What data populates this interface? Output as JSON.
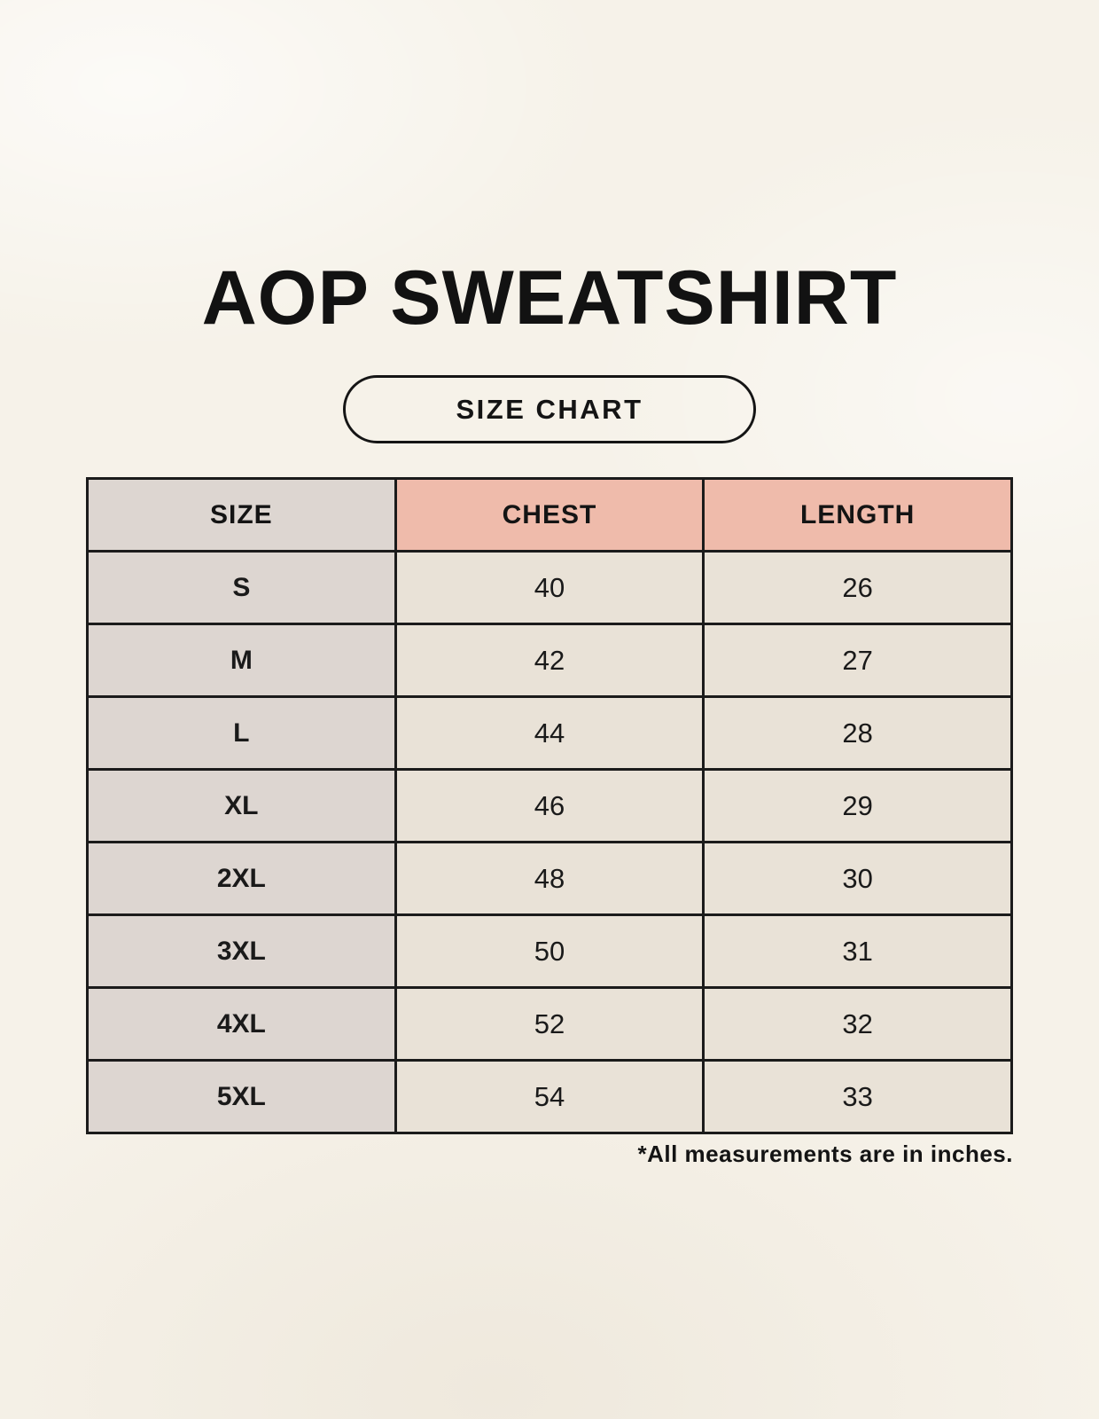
{
  "page": {
    "title": "AOP SWEATSHIRT",
    "size_chart_badge": "SIZE CHART",
    "footnote": "*All measurements are in inches."
  },
  "chart_data": {
    "type": "table",
    "title": "AOP SWEATSHIRT",
    "columns": [
      "SIZE",
      "CHEST",
      "LENGTH"
    ],
    "rows": [
      [
        "S",
        "40",
        "26"
      ],
      [
        "M",
        "42",
        "27"
      ],
      [
        "L",
        "44",
        "28"
      ],
      [
        "XL",
        "46",
        "29"
      ],
      [
        "2XL",
        "48",
        "30"
      ],
      [
        "3XL",
        "50",
        "31"
      ],
      [
        "4XL",
        "52",
        "32"
      ],
      [
        "5XL",
        "54",
        "33"
      ]
    ]
  },
  "colors": {
    "background": "#F6F2E9",
    "size_column_bg": "#DDD6D1",
    "accent_header_bg": "#EFBBAB",
    "data_cell_bg": "#E9E2D7",
    "grid_border": "#1B1B1B",
    "text": "#141414"
  }
}
